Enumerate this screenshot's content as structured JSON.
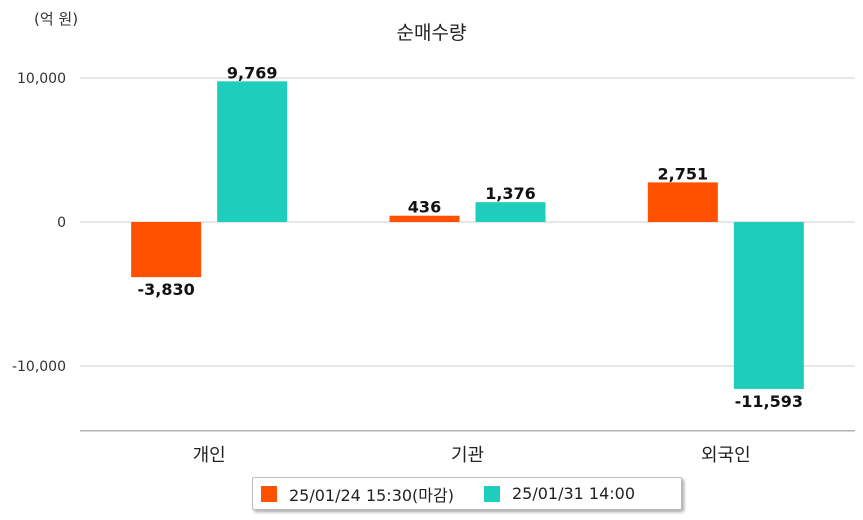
{
  "unit_label": "(억 원)",
  "chart_data": {
    "type": "bar",
    "title": "순매수량",
    "xlabel": "",
    "ylabel": "",
    "categories": [
      "개인",
      "기관",
      "외국인"
    ],
    "series": [
      {
        "name": "25/01/24 15:30(마감)",
        "color": "#ff5000",
        "values": [
          -3830,
          436,
          2751
        ],
        "labels": [
          "-3,830",
          "436",
          "2,751"
        ]
      },
      {
        "name": "25/01/31 14:00",
        "color": "#1ecdbc",
        "values": [
          9769,
          1376,
          -11593
        ],
        "labels": [
          "9,769",
          "1,376",
          "-11,593"
        ]
      }
    ],
    "yticks": [
      10000,
      0,
      -10000
    ],
    "ytick_labels": [
      "10,000",
      "0",
      "-10,000"
    ],
    "ylim": [
      -14500,
      10500
    ],
    "grid": true,
    "legend": "bottom"
  }
}
